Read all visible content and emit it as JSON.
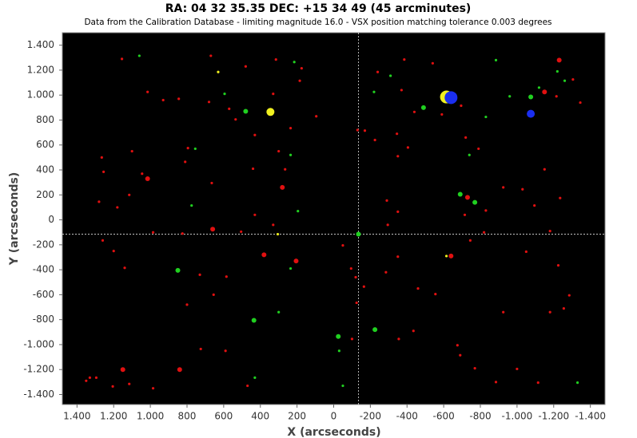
{
  "chart_data": {
    "type": "scatter",
    "title": "RA: 04 32 35.35  DEC: +15 34 49 (45 arcminutes)",
    "subtitle": "Data from the Calibration Database - limiting magnitude 16.0 - VSX position matching tolerance 0.003 degrees",
    "x_label": "X (arcseconds)",
    "y_label": "Y (arcseconds)",
    "xlim": [
      1480,
      -1480
    ],
    "ylim": [
      -1480,
      1500
    ],
    "xticks": [
      {
        "value": 1400,
        "label": "1.400"
      },
      {
        "value": 1200,
        "label": "1.200"
      },
      {
        "value": 1000,
        "label": "1.000"
      },
      800,
      600,
      400,
      200,
      0,
      -200,
      -400,
      -600,
      -800,
      {
        "value": -1000,
        "label": "-1.000"
      },
      {
        "value": -1200,
        "label": "-1.200"
      },
      {
        "value": -1400,
        "label": "-1.400"
      }
    ],
    "yticks": [
      {
        "value": 1400,
        "label": "1.400"
      },
      {
        "value": 1200,
        "label": "1.200"
      },
      {
        "value": 1000,
        "label": "1.000"
      },
      800,
      600,
      400,
      200,
      0,
      -200,
      -400,
      -600,
      -800,
      {
        "value": -1000,
        "label": "-1.000"
      },
      {
        "value": -1200,
        "label": "-1.200"
      },
      {
        "value": -1400,
        "label": "-1.400"
      }
    ],
    "background": "#000000",
    "crosshair": {
      "x": -135,
      "y": -115,
      "color": "#dddddd"
    },
    "series": [
      {
        "color": "#e01010",
        "size": "small",
        "x": [
          1155,
          1015,
          930,
          845,
          680,
          670,
          570,
          535,
          480,
          430,
          330,
          315,
          175,
          185,
          95,
          235,
          300,
          440,
          265,
          430,
          330,
          1100,
          1265,
          1255,
          1045,
          1280,
          1180,
          1115,
          810,
          795,
          665,
          985,
          825,
          505,
          1260,
          1200,
          1140,
          730,
          585,
          655,
          800,
          725,
          590,
          470,
          1115,
          985,
          1205,
          1330,
          1295,
          1350,
          -50,
          -95,
          -120,
          -125,
          -165,
          -100,
          -130,
          -170,
          -225,
          -240,
          -345,
          -370,
          -350,
          -440,
          -385,
          -540,
          -590,
          -405,
          -290,
          -350,
          -295,
          -350,
          -285,
          -460,
          -555,
          -435,
          -355,
          -675,
          -690,
          -770,
          -715,
          -745,
          -820,
          -830,
          -790,
          -720,
          -695,
          -925,
          -1030,
          -1095,
          -1235,
          -1150,
          -1180,
          -1050,
          -1225,
          -1285,
          -1180,
          -1255,
          -1000,
          -1115,
          -885,
          -925,
          -1305,
          -1345,
          -1215
        ],
        "y": [
          1290,
          1025,
          960,
          970,
          945,
          1315,
          890,
          805,
          1230,
          680,
          1010,
          1285,
          1215,
          1115,
          830,
          735,
          550,
          410,
          405,
          40,
          -40,
          550,
          500,
          385,
          370,
          145,
          100,
          200,
          465,
          575,
          295,
          -100,
          -110,
          -95,
          -165,
          -250,
          -385,
          -440,
          -455,
          -600,
          -680,
          -1035,
          -1050,
          -1330,
          -1315,
          -1350,
          -1335,
          -1265,
          -1265,
          -1290,
          -205,
          -390,
          -460,
          -665,
          -535,
          -955,
          720,
          715,
          640,
          1185,
          690,
          1040,
          510,
          865,
          1285,
          1255,
          845,
          580,
          155,
          65,
          -40,
          -295,
          -420,
          -550,
          -595,
          -890,
          -955,
          -1005,
          -1085,
          -1190,
          40,
          -165,
          -100,
          75,
          570,
          660,
          915,
          260,
          245,
          115,
          175,
          405,
          -90,
          -255,
          -365,
          -605,
          -740,
          -710,
          -1195,
          -1305,
          -1300,
          -740,
          1125,
          940,
          990
        ]
      },
      {
        "color": "#e01010",
        "size": "medium",
        "x": [
          1015,
          660,
          280,
          205,
          380,
          840,
          -640,
          -1230,
          -1150,
          -730,
          1150
        ],
        "y": [
          330,
          -75,
          260,
          -330,
          -280,
          -1200,
          -290,
          1280,
          1025,
          180,
          -1200
        ]
      },
      {
        "color": "#20d020",
        "size": "small",
        "x": [
          1060,
          755,
          775,
          595,
          235,
          195,
          235,
          430,
          300,
          215,
          -220,
          -310,
          -740,
          -885,
          -960,
          -830,
          -1120,
          -1220,
          -1260,
          -30,
          -50,
          -1330
        ],
        "y": [
          1315,
          570,
          115,
          1010,
          520,
          70,
          -390,
          -1265,
          -740,
          1265,
          1025,
          1155,
          520,
          1280,
          990,
          825,
          1060,
          1190,
          1115,
          -1050,
          -1330,
          -1305
        ]
      },
      {
        "color": "#20d020",
        "size": "medium",
        "x": [
          480,
          -490,
          -690,
          -770,
          -1075,
          -135,
          850,
          435,
          -25,
          -225
        ],
        "y": [
          870,
          900,
          205,
          140,
          985,
          -115,
          -405,
          -805,
          -935,
          -880
        ]
      },
      {
        "color": "#f0f020",
        "size": "small",
        "x": [
          630,
          305,
          -615
        ],
        "y": [
          1185,
          -115,
          -290
        ]
      },
      {
        "color": "#f0f020",
        "size": "large",
        "x": [
          345
        ],
        "y": [
          865
        ]
      },
      {
        "color": "#f0f020",
        "size": "xlarge",
        "x": [
          -615
        ],
        "y": [
          985
        ]
      },
      {
        "color": "#1a2ef0",
        "size": "large",
        "x": [
          -1075
        ],
        "y": [
          850
        ]
      },
      {
        "color": "#1a2ef0",
        "size": "xlarge",
        "x": [
          -640
        ],
        "y": [
          980
        ]
      }
    ]
  }
}
